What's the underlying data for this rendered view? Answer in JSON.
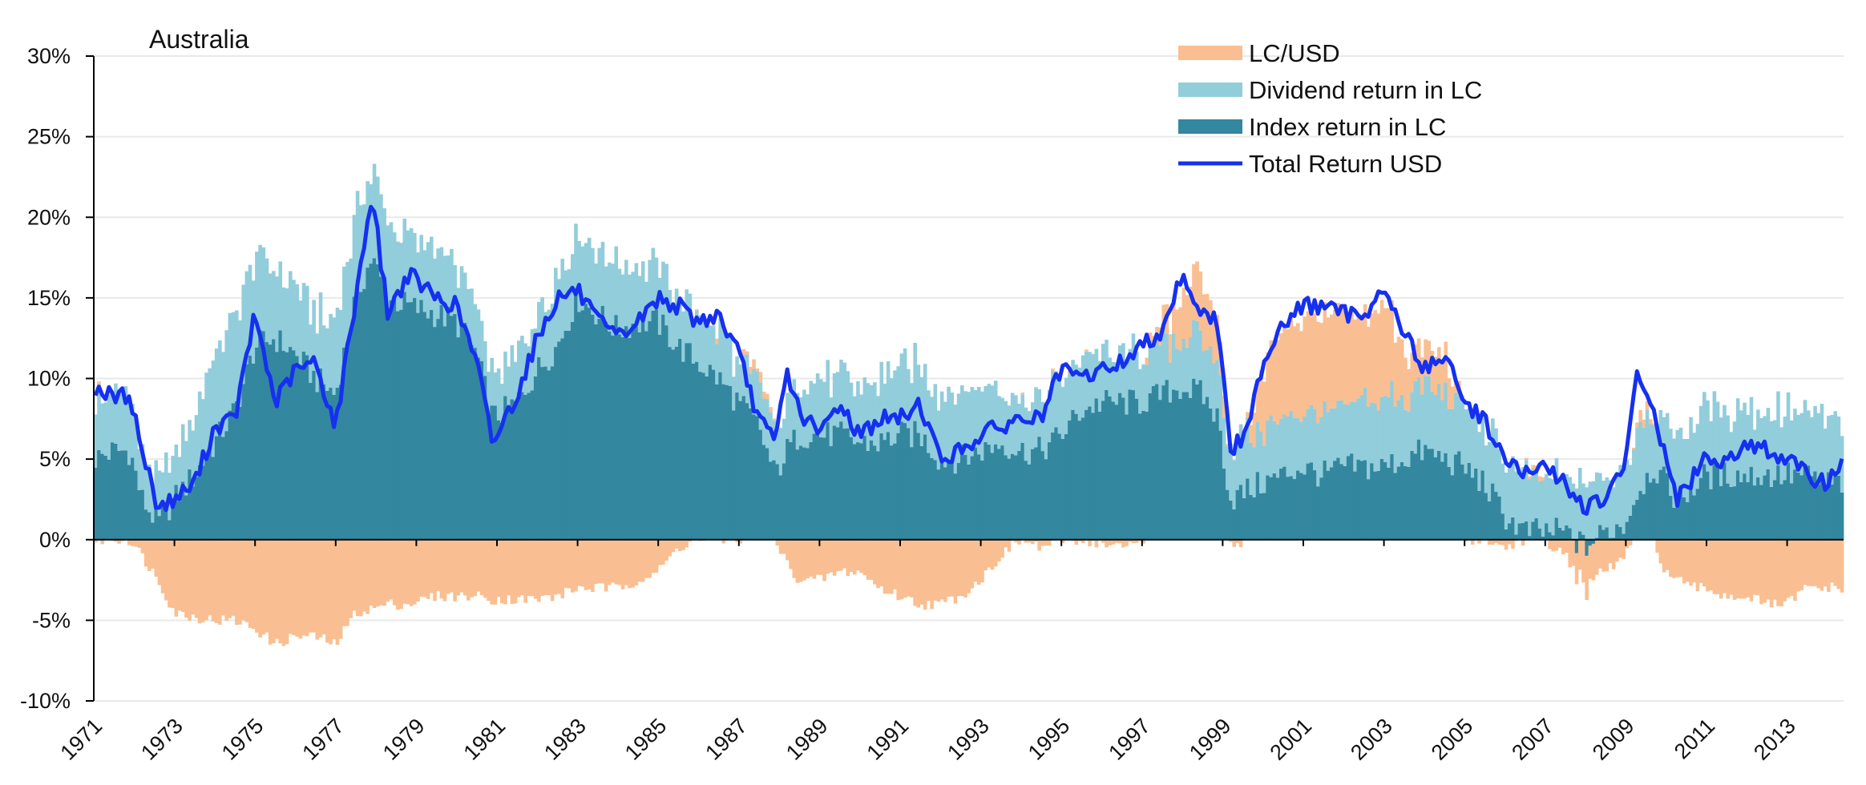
{
  "chart_data": {
    "type": "bar",
    "title": "Australia",
    "xlabel": "",
    "ylabel": "",
    "ylim": [
      -10,
      30
    ],
    "yticks": [
      "30%",
      "25%",
      "20%",
      "15%",
      "10%",
      "5%",
      "0%",
      "-5%",
      "-10%"
    ],
    "ytick_values": [
      30,
      25,
      20,
      15,
      10,
      5,
      0,
      -5,
      -10
    ],
    "xticks": [
      "1971",
      "1973",
      "1975",
      "1977",
      "1979",
      "1981",
      "1983",
      "1985",
      "1987",
      "1989",
      "1991",
      "1993",
      "1995",
      "1997",
      "1999",
      "2001",
      "2003",
      "2005",
      "2007",
      "2009",
      "2011",
      "2013"
    ],
    "x_range": [
      1971.0,
      2014.4
    ],
    "colors": {
      "lc_usd": "#f9bf92",
      "dividend": "#92cddb",
      "index": "#33879e",
      "total": "#1530f0",
      "grid": "#e9e9e9",
      "axis": "#000000"
    },
    "legend": {
      "position": "top-right",
      "entries": [
        {
          "key": "lc_usd",
          "label": "LC/USD",
          "kind": "bar"
        },
        {
          "key": "dividend",
          "label": "Dividend return in LC",
          "kind": "bar"
        },
        {
          "key": "index",
          "label": "Index return in LC",
          "kind": "bar"
        },
        {
          "key": "total",
          "label": "Total Return USD",
          "kind": "line"
        }
      ]
    },
    "anchor_years": [
      1971.0,
      1971.5,
      1971.9,
      1972.2,
      1972.6,
      1973.0,
      1973.5,
      1974.0,
      1974.5,
      1975.0,
      1975.5,
      1976.0,
      1976.5,
      1977.0,
      1977.5,
      1977.9,
      1978.3,
      1978.8,
      1979.5,
      1980.0,
      1980.5,
      1980.9,
      1981.5,
      1982.0,
      1982.5,
      1983.0,
      1983.5,
      1984.0,
      1984.5,
      1985.0,
      1985.5,
      1986.0,
      1986.5,
      1987.0,
      1987.5,
      1987.9,
      1988.2,
      1988.5,
      1989.0,
      1989.5,
      1990.0,
      1990.5,
      1991.0,
      1991.5,
      1992.0,
      1992.5,
      1993.0,
      1993.5,
      1994.0,
      1994.5,
      1995.0,
      1995.5,
      1996.0,
      1996.5,
      1997.0,
      1997.5,
      1998.0,
      1998.5,
      1998.9,
      1999.2,
      1999.6,
      2000.0,
      2000.5,
      2001.0,
      2001.5,
      2002.0,
      2002.5,
      2003.0,
      2003.5,
      2004.0,
      2004.5,
      2005.0,
      2005.5,
      2006.0,
      2006.5,
      2007.0,
      2007.5,
      2008.0,
      2008.5,
      2009.0,
      2009.3,
      2009.7,
      2010.0,
      2010.3,
      2010.6,
      2011.0,
      2011.5,
      2012.0,
      2012.5,
      2013.0,
      2013.5,
      2014.0,
      2014.4
    ],
    "index_return_lc": [
      5.0,
      5.5,
      5.5,
      2.5,
      1.0,
      2.5,
      4.0,
      6.0,
      8.0,
      12.0,
      12.5,
      11.5,
      10.0,
      9.0,
      15.0,
      17.5,
      15.0,
      14.5,
      14.0,
      13.5,
      11.5,
      7.5,
      8.5,
      10.5,
      12.0,
      15.0,
      14.0,
      13.0,
      13.5,
      13.5,
      12.0,
      11.0,
      10.0,
      8.5,
      7.0,
      4.0,
      5.5,
      6.5,
      6.5,
      6.5,
      6.0,
      6.0,
      6.5,
      6.5,
      5.0,
      5.0,
      5.5,
      6.0,
      5.5,
      5.5,
      6.5,
      8.0,
      8.5,
      8.5,
      8.5,
      9.0,
      9.5,
      9.0,
      7.5,
      2.5,
      3.0,
      3.5,
      4.0,
      4.5,
      4.0,
      4.5,
      4.5,
      4.5,
      5.0,
      5.5,
      5.0,
      4.5,
      3.5,
      1.5,
      0.5,
      0.5,
      0.5,
      -0.5,
      0.5,
      1.0,
      3.0,
      4.5,
      3.5,
      2.5,
      3.0,
      4.0,
      4.0,
      4.0,
      4.0,
      4.0,
      4.0,
      3.5,
      3.5
    ],
    "dividend_return_lc": [
      3.5,
      3.5,
      3.5,
      2.5,
      2.5,
      2.5,
      4.0,
      5.5,
      6.0,
      5.5,
      4.5,
      4.0,
      4.0,
      4.5,
      5.0,
      5.5,
      4.5,
      4.5,
      4.0,
      3.5,
      3.0,
      2.5,
      3.0,
      3.5,
      4.5,
      4.0,
      4.0,
      4.0,
      3.5,
      3.5,
      3.0,
      3.0,
      3.0,
      2.5,
      2.5,
      2.5,
      3.0,
      3.0,
      3.5,
      3.5,
      3.5,
      4.0,
      4.0,
      4.5,
      4.0,
      4.0,
      4.0,
      3.5,
      3.5,
      3.5,
      3.5,
      3.5,
      3.0,
      3.0,
      3.0,
      3.0,
      3.0,
      3.5,
      3.5,
      3.0,
      3.5,
      3.5,
      3.5,
      3.5,
      3.5,
      3.5,
      4.0,
      4.0,
      4.0,
      4.0,
      4.0,
      4.0,
      3.5,
      3.5,
      3.5,
      3.5,
      3.5,
      3.5,
      3.5,
      3.5,
      4.0,
      3.5,
      3.5,
      4.0,
      4.0,
      4.0,
      4.0,
      4.0,
      4.0,
      4.0,
      4.0,
      4.0,
      4.0
    ],
    "lc_usd": [
      0.0,
      0.0,
      0.0,
      -1.0,
      -2.5,
      -4.5,
      -4.8,
      -5.0,
      -5.0,
      -5.5,
      -6.5,
      -6.0,
      -6.0,
      -6.5,
      -4.5,
      -4.3,
      -4.0,
      -4.0,
      -3.5,
      -3.5,
      -3.5,
      -3.7,
      -3.7,
      -3.7,
      -3.5,
      -3.0,
      -3.0,
      -3.0,
      -2.5,
      -2.0,
      -0.5,
      0.0,
      0.0,
      0.0,
      0.5,
      0.0,
      -1.5,
      -2.5,
      -2.5,
      -2.0,
      -2.0,
      -3.0,
      -3.5,
      -4.0,
      -4.0,
      -3.5,
      -2.5,
      -1.0,
      0.0,
      -0.5,
      0.0,
      0.0,
      -0.3,
      -0.5,
      0.0,
      1.0,
      3.0,
      3.5,
      2.5,
      -0.5,
      0.0,
      4.0,
      5.5,
      6.0,
      6.0,
      6.0,
      5.0,
      6.0,
      3.0,
      2.0,
      2.5,
      0.0,
      0.0,
      -0.5,
      0.0,
      0.0,
      -1.0,
      -2.5,
      -2.0,
      -1.0,
      0.5,
      0.0,
      -2.0,
      -2.5,
      -3.0,
      -3.0,
      -3.5,
      -3.5,
      -4.0,
      -4.0,
      -3.0,
      -3.0,
      -3.0
    ],
    "total_return_usd": [
      9.5,
      8.8,
      9.0,
      5.5,
      2.0,
      2.5,
      3.5,
      7.0,
      7.5,
      14.0,
      8.5,
      10.5,
      11.0,
      7.0,
      15.0,
      21.5,
      14.0,
      16.5,
      15.0,
      14.5,
      11.0,
      6.0,
      9.0,
      12.5,
      15.0,
      15.5,
      13.5,
      12.5,
      13.5,
      15.0,
      14.5,
      13.5,
      14.0,
      11.5,
      7.5,
      6.0,
      10.5,
      8.0,
      6.5,
      8.5,
      6.5,
      7.5,
      7.5,
      8.5,
      5.0,
      5.5,
      6.5,
      7.0,
      7.5,
      7.5,
      10.5,
      10.0,
      10.5,
      11.0,
      12.0,
      13.0,
      16.5,
      14.0,
      13.5,
      5.5,
      6.5,
      11.0,
      13.5,
      14.5,
      14.5,
      14.0,
      14.0,
      15.5,
      13.0,
      10.5,
      11.5,
      8.5,
      7.5,
      5.0,
      4.0,
      4.5,
      3.5,
      2.0,
      2.5,
      4.5,
      10.5,
      8.0,
      5.0,
      2.5,
      3.5,
      5.0,
      5.0,
      6.0,
      5.5,
      5.0,
      4.0,
      3.5,
      5.0
    ]
  }
}
